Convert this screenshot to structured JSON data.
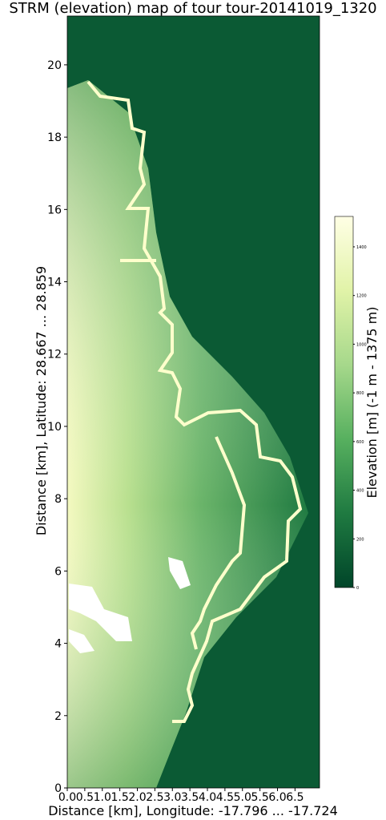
{
  "chart_data": {
    "type": "heatmap",
    "title": "STRM (elevation) map of tour tour-20141019_1320",
    "x_label": "Distance [km], Longitude: -17.796 ... -17.724",
    "y_label": "Distance [km], Latitude: 28.667 ... 28.859",
    "xlim": [
      0,
      7.2
    ],
    "ylim": [
      0,
      21.35
    ],
    "xticks": [
      {
        "value": 0,
        "label": "0.0"
      },
      0.5,
      {
        "value": 1,
        "label": "1.0"
      },
      1.5,
      {
        "value": 2,
        "label": "2.0"
      },
      2.5,
      {
        "value": 3,
        "label": "3.0"
      },
      3.5,
      {
        "value": 4,
        "label": "4.0"
      },
      4.5,
      {
        "value": 5,
        "label": "5.0"
      },
      5.5,
      {
        "value": 6,
        "label": "6.0"
      },
      6.5
    ],
    "yticks": [
      0,
      2,
      4,
      6,
      8,
      10,
      12,
      14,
      16,
      18,
      20
    ],
    "colorbar": {
      "label": "Elevation [m] (-1 m - 1375 m)",
      "lim": [
        0,
        1525
      ],
      "ticks": [
        0,
        200,
        400,
        600,
        800,
        1000,
        1200,
        1400
      ],
      "colors": [
        "#004529",
        "#ffffe5"
      ]
    }
  }
}
